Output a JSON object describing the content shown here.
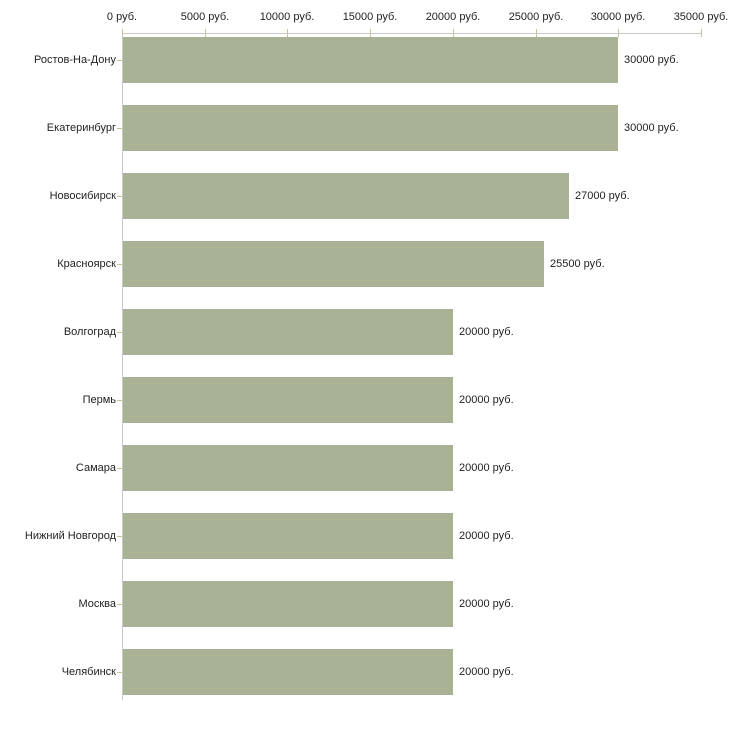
{
  "chart_data": {
    "type": "bar",
    "orientation": "horizontal",
    "title": "",
    "xlabel": "",
    "ylabel": "",
    "categories": [
      "Ростов-На-Дону",
      "Екатеринбург",
      "Новосибирск",
      "Красноярск",
      "Волгоград",
      "Пермь",
      "Самара",
      "Нижний Новгород",
      "Москва",
      "Челябинск"
    ],
    "values": [
      30000,
      30000,
      27000,
      25500,
      20000,
      20000,
      20000,
      20000,
      20000,
      20000
    ],
    "value_labels": [
      "30000 руб.",
      "30000 руб.",
      "27000 руб.",
      "25500 руб.",
      "20000 руб.",
      "20000 руб.",
      "20000 руб.",
      "20000 руб.",
      "20000 руб.",
      "20000 руб."
    ],
    "x_ticks": [
      0,
      5000,
      10000,
      15000,
      20000,
      25000,
      30000,
      35000
    ],
    "x_tick_labels": [
      "0 руб.",
      "5000 руб.",
      "10000 руб.",
      "15000 руб.",
      "20000 руб.",
      "25000 руб.",
      "30000 руб.",
      "35000 руб."
    ],
    "xlim": [
      0,
      35000
    ],
    "grid": false,
    "legend": false,
    "colors": {
      "bar": "#a9b294",
      "axis_line": "#c9c9c9",
      "tick_mark": "#c3c39e",
      "text": "#1f1f1f",
      "background": "#ffffff"
    }
  }
}
